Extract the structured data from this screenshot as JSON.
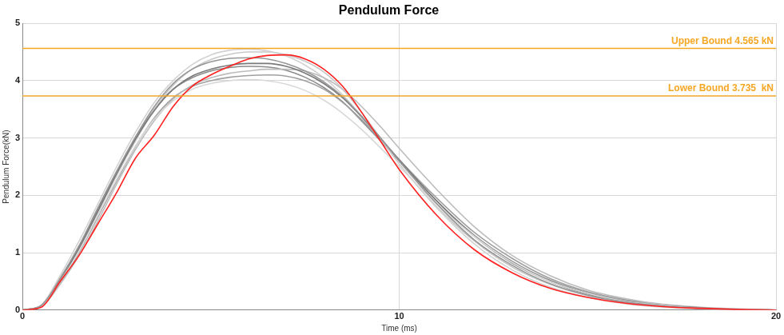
{
  "chart_data": {
    "type": "line",
    "title": "Pendulum Force",
    "x_label": "Time (ms)",
    "y_label": "Pendulum Force(kN)",
    "x": [
      0,
      0.5,
      1,
      1.5,
      2,
      2.5,
      3,
      3.5,
      4,
      4.5,
      5,
      5.5,
      6,
      6.5,
      7,
      7.5,
      8,
      8.5,
      9,
      9.5,
      10,
      11,
      12,
      13,
      14,
      15,
      16,
      17,
      18,
      19,
      20
    ],
    "series": [
      {
        "color": "#8c8c8c",
        "values": [
          0,
          0.08,
          0.55,
          1.1,
          1.75,
          2.4,
          3.0,
          3.5,
          3.85,
          4.05,
          4.17,
          4.23,
          4.25,
          4.24,
          4.18,
          4.06,
          3.88,
          3.63,
          3.3,
          2.95,
          2.6,
          1.9,
          1.3,
          0.85,
          0.52,
          0.3,
          0.16,
          0.08,
          0.04,
          0.01,
          0
        ]
      },
      {
        "color": "#c8c8c8",
        "values": [
          0,
          0.07,
          0.5,
          1.05,
          1.7,
          2.35,
          2.95,
          3.5,
          3.92,
          4.2,
          4.37,
          4.46,
          4.5,
          4.5,
          4.45,
          4.34,
          4.15,
          3.85,
          3.45,
          3.0,
          2.55,
          1.8,
          1.2,
          0.75,
          0.45,
          0.25,
          0.13,
          0.07,
          0.03,
          0.01,
          0
        ]
      },
      {
        "color": "#a0a0a0",
        "values": [
          0,
          0.06,
          0.48,
          1.0,
          1.62,
          2.25,
          2.85,
          3.35,
          3.7,
          3.9,
          4.0,
          4.06,
          4.09,
          4.1,
          4.08,
          4.0,
          3.85,
          3.62,
          3.32,
          2.98,
          2.62,
          1.95,
          1.35,
          0.9,
          0.55,
          0.32,
          0.18,
          0.09,
          0.04,
          0.015,
          0
        ]
      },
      {
        "color": "#d2d2d2",
        "values": [
          0,
          0.09,
          0.6,
          1.2,
          1.85,
          2.5,
          3.1,
          3.62,
          4.0,
          4.28,
          4.45,
          4.53,
          4.55,
          4.52,
          4.43,
          4.27,
          4.05,
          3.75,
          3.38,
          2.98,
          2.55,
          1.78,
          1.15,
          0.7,
          0.4,
          0.22,
          0.11,
          0.05,
          0.02,
          0.01,
          0
        ]
      },
      {
        "color": "#bcbcbc",
        "values": [
          0,
          0.06,
          0.45,
          0.95,
          1.55,
          2.2,
          2.8,
          3.3,
          3.68,
          3.92,
          4.05,
          4.13,
          4.17,
          4.2,
          4.2,
          4.17,
          4.05,
          3.85,
          3.55,
          3.2,
          2.82,
          2.1,
          1.45,
          0.95,
          0.6,
          0.35,
          0.2,
          0.1,
          0.05,
          0.02,
          0
        ]
      },
      {
        "color": "#7a7a7a",
        "values": [
          0,
          0.08,
          0.52,
          1.08,
          1.72,
          2.38,
          2.98,
          3.48,
          3.85,
          4.08,
          4.2,
          4.27,
          4.3,
          4.3,
          4.25,
          4.13,
          3.95,
          3.7,
          3.37,
          3.0,
          2.62,
          1.9,
          1.28,
          0.82,
          0.5,
          0.28,
          0.15,
          0.08,
          0.04,
          0.01,
          0
        ]
      },
      {
        "color": "#d8d8d8",
        "values": [
          0,
          0.07,
          0.5,
          1.02,
          1.65,
          2.28,
          2.86,
          3.33,
          3.65,
          3.85,
          3.95,
          4.0,
          4.02,
          4.0,
          3.94,
          3.83,
          3.66,
          3.43,
          3.15,
          2.83,
          2.5,
          1.85,
          1.28,
          0.83,
          0.5,
          0.29,
          0.15,
          0.08,
          0.03,
          0.01,
          0
        ]
      },
      {
        "color": "#969696",
        "values": [
          0,
          0.08,
          0.55,
          1.12,
          1.78,
          2.42,
          3.02,
          3.55,
          3.95,
          4.2,
          4.33,
          4.39,
          4.4,
          4.38,
          4.3,
          4.17,
          3.98,
          3.72,
          3.38,
          3.0,
          2.6,
          1.85,
          1.22,
          0.78,
          0.46,
          0.26,
          0.14,
          0.07,
          0.03,
          0.01,
          0
        ]
      },
      {
        "color": "#ff2020",
        "values": [
          0,
          0.05,
          0.5,
          0.95,
          1.5,
          2.05,
          2.65,
          3.05,
          3.55,
          3.9,
          4.1,
          4.25,
          4.38,
          4.44,
          4.45,
          4.38,
          4.2,
          3.9,
          3.45,
          2.95,
          2.45,
          1.65,
          1.05,
          0.65,
          0.38,
          0.22,
          0.12,
          0.06,
          0.03,
          0.01,
          0
        ]
      }
    ],
    "annotations": [
      {
        "text": "Upper Bound 4.565 kN",
        "y": 4.565,
        "color": "#f5a623"
      },
      {
        "text": "Lower Bound 3.735  kN",
        "y": 3.735,
        "color": "#f5a623"
      }
    ],
    "xlim": [
      0,
      20
    ],
    "xticks": [
      0,
      10,
      20
    ],
    "ylim": [
      0,
      5
    ],
    "yticks": [
      0,
      1,
      2,
      3,
      4,
      5
    ],
    "grid": true
  }
}
